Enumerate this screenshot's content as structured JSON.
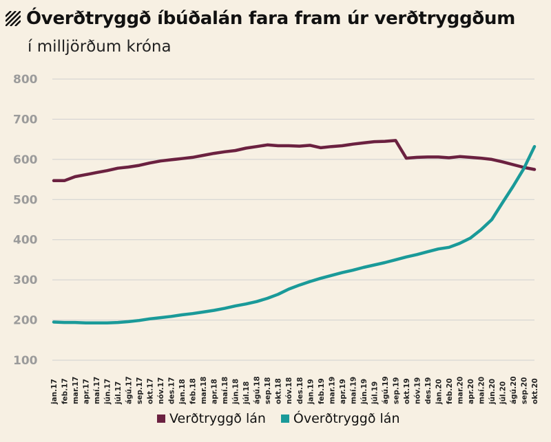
{
  "title": "Óverðtryggð íbúðalán fara fram úr verðtryggðum",
  "subtitle": "í milljörðum króna",
  "icons": {
    "title_marker": "hatch-icon"
  },
  "colors": {
    "background": "#f7f0e3",
    "grid": "#cfcfcf",
    "series1": "#6b2140",
    "series2": "#1a9a99"
  },
  "chart_data": {
    "type": "line",
    "title": "Óverðtryggð íbúðalán fara fram úr verðtryggðum",
    "subtitle": "í milljörðum króna",
    "ylim": [
      100,
      800
    ],
    "yticks": [
      100,
      200,
      300,
      400,
      500,
      600,
      700,
      800
    ],
    "grid": true,
    "legend_position": "bottom",
    "categories": [
      "jan.17",
      "feb.17",
      "mar.17",
      "apr.17",
      "maí.17",
      "jún.17",
      "júl.17",
      "ágú.17",
      "sep.17",
      "okt.17",
      "nóv.17",
      "des.17",
      "jan.18",
      "feb.18",
      "mar.18",
      "apr.18",
      "maí.18",
      "jún.18",
      "júl.18",
      "ágú.18",
      "sep.18",
      "okt.18",
      "nóv.18",
      "des.18",
      "jan.19",
      "feb.19",
      "mar.19",
      "apr.19",
      "maí.19",
      "jún.19",
      "júl.19",
      "ágú.19",
      "sep.19",
      "okt.19",
      "nóv.19",
      "des.19",
      "jan.20",
      "feb.20",
      "mar.20",
      "apr.20",
      "maí.20",
      "jún.20",
      "júl.20",
      "ágú.20",
      "sep.20",
      "okt.20"
    ],
    "series": [
      {
        "name": "Verðtryggð lán",
        "color": "#6b2140",
        "values": [
          547,
          547,
          557,
          562,
          567,
          572,
          578,
          581,
          585,
          591,
          596,
          599,
          602,
          605,
          610,
          615,
          619,
          622,
          628,
          632,
          636,
          634,
          634,
          633,
          635,
          629,
          632,
          634,
          638,
          641,
          644,
          645,
          647,
          603,
          605,
          606,
          606,
          604,
          607,
          605,
          603,
          600,
          594,
          587,
          580,
          575
        ]
      },
      {
        "name": "Óverðtryggð lán",
        "color": "#1a9a99",
        "values": [
          195,
          194,
          194,
          193,
          193,
          193,
          194,
          196,
          199,
          203,
          206,
          209,
          213,
          216,
          220,
          224,
          229,
          235,
          240,
          246,
          254,
          264,
          277,
          287,
          296,
          304,
          311,
          318,
          324,
          331,
          337,
          343,
          350,
          357,
          363,
          370,
          377,
          381,
          391,
          404,
          425,
          450,
          492,
          533,
          577,
          632
        ]
      }
    ]
  }
}
